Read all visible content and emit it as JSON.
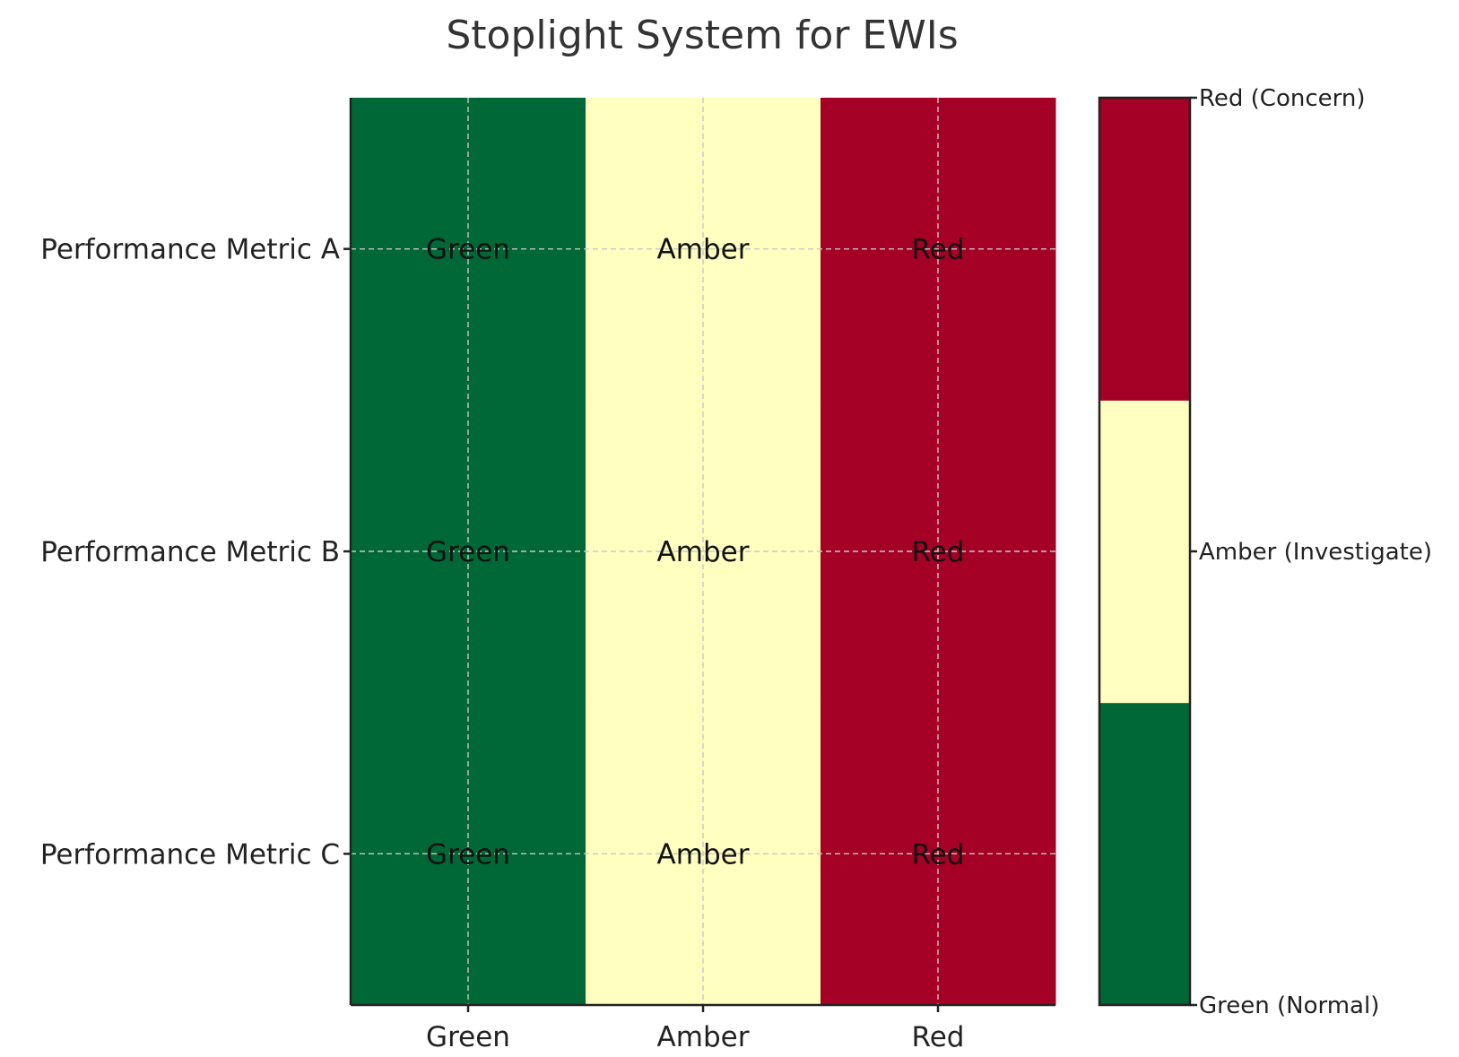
{
  "chart_data": {
    "type": "heatmap",
    "title": "Stoplight System for EWIs",
    "xlabel": "",
    "ylabel": "",
    "x_categories": [
      "Green",
      "Amber",
      "Red"
    ],
    "y_categories": [
      "Performance Metric A",
      "Performance Metric B",
      "Performance Metric C"
    ],
    "values": [
      [
        0,
        1,
        2
      ],
      [
        0,
        1,
        2
      ],
      [
        0,
        1,
        2
      ]
    ],
    "cell_labels": [
      [
        "Green",
        "Amber",
        "Red"
      ],
      [
        "Green",
        "Amber",
        "Red"
      ],
      [
        "Green",
        "Amber",
        "Red"
      ]
    ],
    "colormap": [
      "#006837",
      "#ffffbf",
      "#a50026"
    ],
    "colorbar": {
      "ticks": [
        0,
        1,
        2
      ],
      "tick_labels": [
        "Green (Normal)",
        "Amber (Investigate)",
        "Red (Concern)"
      ],
      "range": [
        0,
        2
      ]
    },
    "grid": true
  }
}
